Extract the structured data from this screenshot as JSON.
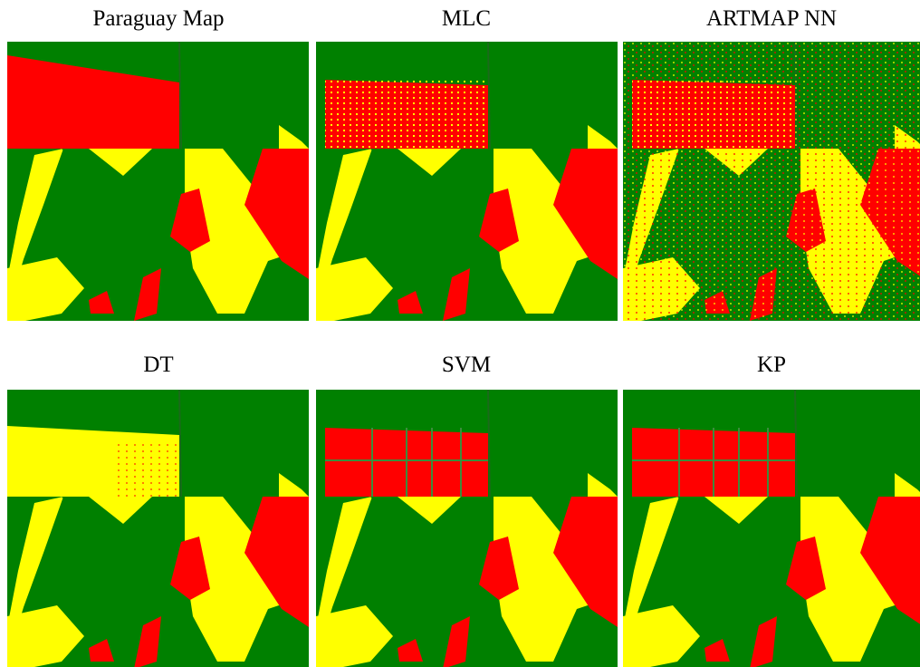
{
  "panels": [
    {
      "title": "Paraguay Map"
    },
    {
      "title": "MLC"
    },
    {
      "title": "ARTMAP NN"
    },
    {
      "title": "DT"
    },
    {
      "title": "SVM"
    },
    {
      "title": "KP"
    }
  ]
}
